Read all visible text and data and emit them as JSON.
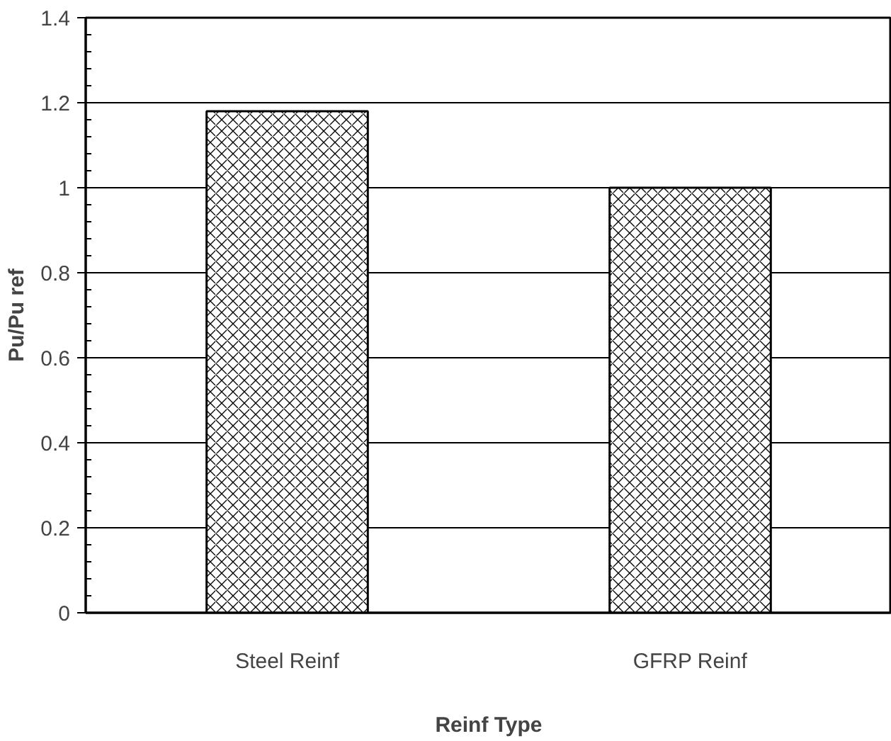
{
  "chart_data": {
    "type": "bar",
    "xlabel": "Reinf Type",
    "ylabel": "Pu/Pu ref",
    "categories": [
      "Steel Reinf",
      "GFRP Reinf"
    ],
    "values": [
      1.18,
      1.0
    ],
    "color": "#ffffff",
    "ylim": [
      0,
      1.4
    ],
    "yticks": [
      0,
      0.2,
      0.4,
      0.6,
      0.8,
      1,
      1.2,
      1.4
    ],
    "grid": "y"
  }
}
